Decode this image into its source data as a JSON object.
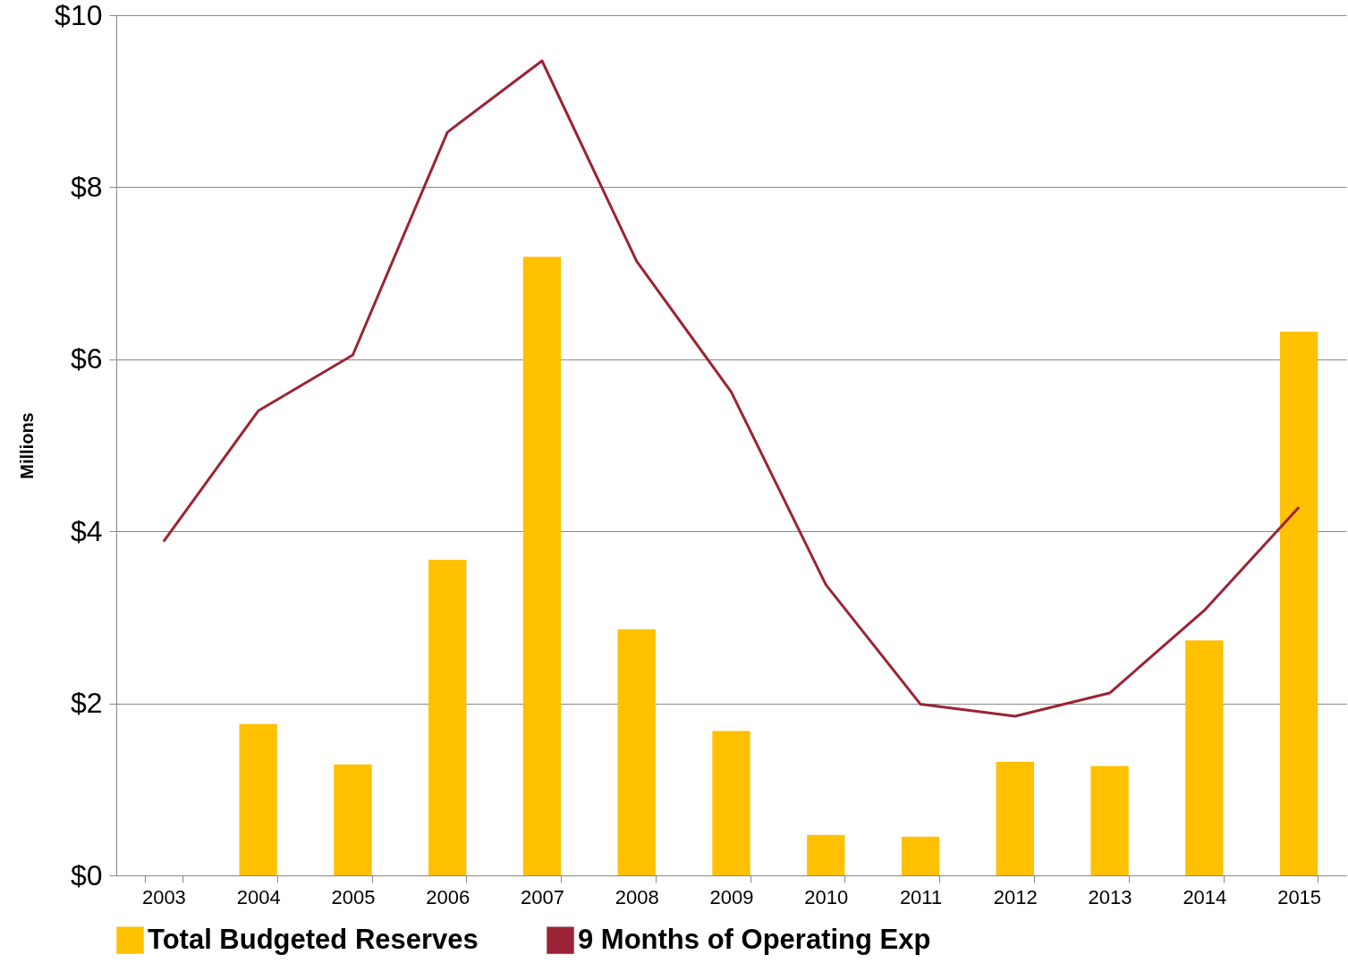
{
  "chart_data": {
    "type": "bar",
    "ylabel": "Millions",
    "categories": [
      "2003",
      "2004",
      "2005",
      "2006",
      "2007",
      "2008",
      "2009",
      "2010",
      "2011",
      "2012",
      "2013",
      "2014",
      "2015"
    ],
    "series": [
      {
        "name": "Total Budgeted Reserves",
        "color": "#ffc000",
        "values": [
          null,
          1.76,
          1.29,
          3.67,
          7.19,
          2.86,
          1.68,
          0.47,
          0.45,
          1.32,
          1.27,
          2.73,
          6.32
        ]
      },
      {
        "name": "9 Months of Operating Exp",
        "type": "line",
        "color": "#9b2335",
        "values": [
          3.88,
          5.4,
          6.05,
          8.64,
          9.47,
          7.14,
          5.62,
          3.38,
          1.99,
          1.85,
          2.12,
          3.08,
          4.28
        ]
      }
    ],
    "ylim": [
      0,
      10
    ],
    "yticks": [
      {
        "value": 0,
        "label": "$0"
      },
      {
        "value": 2,
        "label": "$2"
      },
      {
        "value": 4,
        "label": "$4"
      },
      {
        "value": 6,
        "label": "$6"
      },
      {
        "value": 8,
        "label": "$8"
      },
      {
        "value": 10,
        "label": "$10"
      }
    ],
    "grid": "y",
    "legend": "bottom",
    "line_style": "solid"
  }
}
